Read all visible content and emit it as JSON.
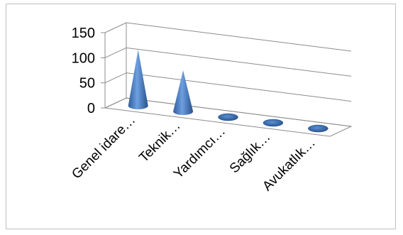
{
  "chart_data": {
    "type": "bar",
    "style": "3d-cone",
    "categories": [
      "Genel idare…",
      "Teknik…",
      "Yardımcı…",
      "Sağlık…",
      "Avukatlık…"
    ],
    "values": [
      112,
      82,
      1,
      1,
      1
    ],
    "y_ticks": [
      "0",
      "50",
      "100",
      "150"
    ],
    "ylim": [
      0,
      150
    ],
    "grid": true,
    "legend": "none",
    "series_color": "#4a7ebb"
  }
}
